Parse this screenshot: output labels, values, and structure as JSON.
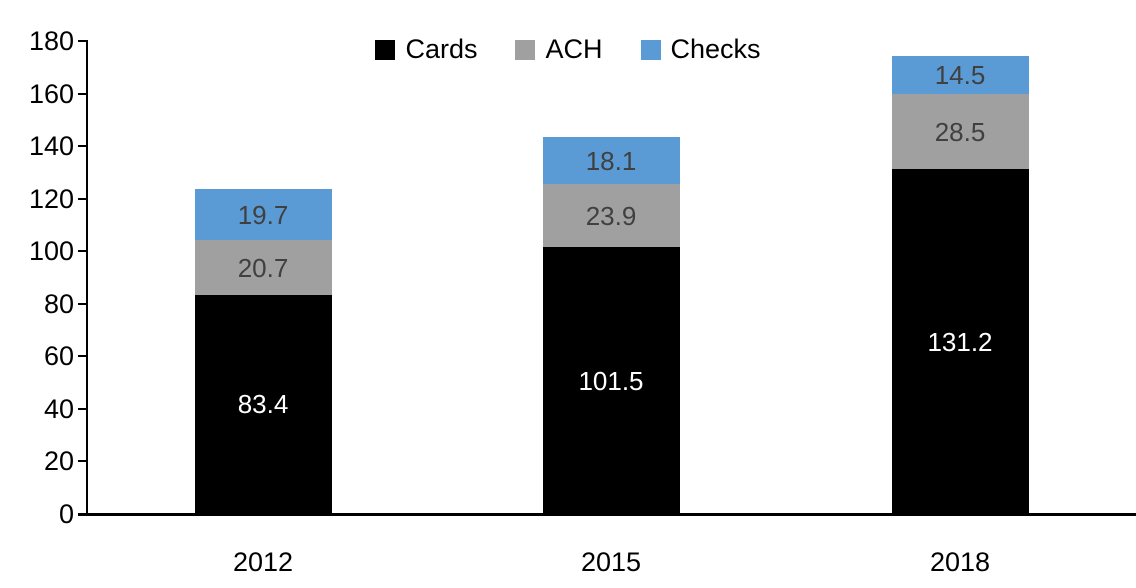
{
  "chart_data": {
    "type": "bar",
    "stacked": true,
    "title": "",
    "xlabel": "",
    "ylabel": "",
    "categories": [
      "2012",
      "2015",
      "2018"
    ],
    "series": [
      {
        "name": "Cards",
        "color": "#000000",
        "label_color": "#ffffff",
        "values": [
          83.4,
          101.5,
          131.2
        ]
      },
      {
        "name": "ACH",
        "color": "#a0a0a0",
        "label_color": "#404040",
        "values": [
          20.7,
          23.9,
          28.5
        ]
      },
      {
        "name": "Checks",
        "color": "#5b9bd5",
        "label_color": "#404040",
        "values": [
          19.7,
          18.1,
          14.5
        ]
      }
    ],
    "totals": [
      123.8,
      143.5,
      174.2
    ],
    "ylim": [
      0,
      180
    ],
    "ytick_step": 20,
    "yticks": [
      0,
      20,
      40,
      60,
      80,
      100,
      120,
      140,
      160,
      180
    ],
    "grid": false,
    "legend_position": "top-center",
    "axis_color": "#000000",
    "background_color": "#ffffff"
  }
}
